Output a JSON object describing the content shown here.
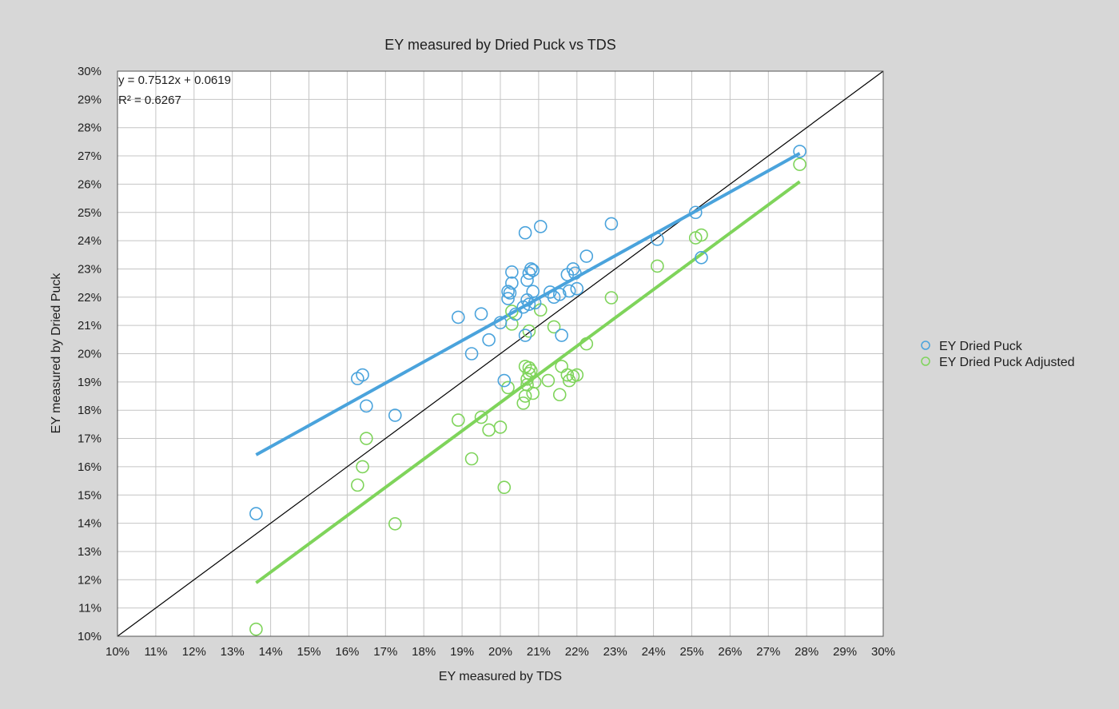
{
  "chart_data": {
    "type": "scatter",
    "title": "EY measured by Dried Puck vs TDS",
    "xlabel": "EY measured by TDS",
    "ylabel": "EY measured by Dried Puck",
    "xlim": [
      0.1,
      0.3
    ],
    "ylim": [
      0.1,
      0.3
    ],
    "x_tick_labels": [
      "10%",
      "11%",
      "12%",
      "13%",
      "14%",
      "15%",
      "16%",
      "17%",
      "18%",
      "19%",
      "20%",
      "21%",
      "22%",
      "23%",
      "24%",
      "25%",
      "26%",
      "27%",
      "28%",
      "29%",
      "30%"
    ],
    "y_tick_labels": [
      "10%",
      "11%",
      "12%",
      "13%",
      "14%",
      "15%",
      "16%",
      "17%",
      "18%",
      "19%",
      "20%",
      "21%",
      "22%",
      "23%",
      "24%",
      "25%",
      "26%",
      "27%",
      "28%",
      "29%",
      "30%"
    ],
    "grid": true,
    "legend_position": "right",
    "trendline_equation": "y = 0.7512x + 0.0619",
    "trendline_r2": "R² = 0.6267",
    "colors": {
      "series_1": "#4aa3dc",
      "series_2": "#7fd45b",
      "reference_line": "#000000",
      "background": "#d7d7d7",
      "plot_area": "#ffffff",
      "grid": "#c4c4c4"
    },
    "series": [
      {
        "name": "EY Dried Puck",
        "x": [
          0.1362,
          0.1627,
          0.164,
          0.165,
          0.1725,
          0.189,
          0.1925,
          0.195,
          0.197,
          0.2,
          0.201,
          0.202,
          0.203,
          0.202,
          0.2025,
          0.203,
          0.204,
          0.206,
          0.2065,
          0.207,
          0.207,
          0.2065,
          0.2075,
          0.2075,
          0.208,
          0.2085,
          0.2085,
          0.209,
          0.2105,
          0.213,
          0.214,
          0.216,
          0.2155,
          0.2175,
          0.218,
          0.219,
          0.22,
          0.2195,
          0.2225,
          0.229,
          0.241,
          0.251,
          0.2525,
          0.2782
        ],
        "y": [
          0.1434,
          0.1912,
          0.1925,
          0.1815,
          0.1782,
          0.2129,
          0.2,
          0.2141,
          0.2049,
          0.211,
          0.1905,
          0.222,
          0.2289,
          0.2195,
          0.2215,
          0.225,
          0.214,
          0.2165,
          0.2065,
          0.219,
          0.226,
          0.2428,
          0.2285,
          0.2175,
          0.23,
          0.2295,
          0.222,
          0.218,
          0.245,
          0.2218,
          0.22,
          0.2065,
          0.221,
          0.228,
          0.2222,
          0.23,
          0.223,
          0.2285,
          0.2345,
          0.246,
          0.2405,
          0.25,
          0.234,
          0.2716
        ]
      },
      {
        "name": "EY Dried Puck Adjusted",
        "x": [
          0.1362,
          0.1627,
          0.164,
          0.165,
          0.1725,
          0.189,
          0.1925,
          0.195,
          0.197,
          0.2,
          0.201,
          0.202,
          0.203,
          0.203,
          0.206,
          0.2065,
          0.2065,
          0.207,
          0.207,
          0.2075,
          0.2075,
          0.2075,
          0.208,
          0.2085,
          0.209,
          0.2105,
          0.2125,
          0.214,
          0.2155,
          0.216,
          0.2175,
          0.218,
          0.219,
          0.22,
          0.2225,
          0.229,
          0.241,
          0.251,
          0.2525,
          0.2782
        ],
        "y": [
          0.1025,
          0.1535,
          0.16,
          0.17,
          0.1398,
          0.1765,
          0.1628,
          0.1775,
          0.173,
          0.174,
          0.1527,
          0.188,
          0.2105,
          0.215,
          0.1825,
          0.1955,
          0.185,
          0.189,
          0.191,
          0.193,
          0.195,
          0.208,
          0.194,
          0.186,
          0.19,
          0.2155,
          0.1905,
          0.2095,
          0.1855,
          0.1955,
          0.1925,
          0.1905,
          0.192,
          0.1925,
          0.2035,
          0.2198,
          0.231,
          0.241,
          0.242,
          0.267
        ]
      }
    ],
    "trendlines": [
      {
        "series": "EY Dried Puck",
        "slope": 0.7512,
        "intercept": 0.0619,
        "x_range": [
          0.1362,
          0.2782
        ]
      },
      {
        "series": "EY Dried Puck Adjusted",
        "slope": 1.0,
        "intercept": -0.0173,
        "x_range": [
          0.1362,
          0.2782
        ]
      }
    ],
    "reference_line": {
      "slope": 1.0,
      "intercept": 0.0
    }
  }
}
